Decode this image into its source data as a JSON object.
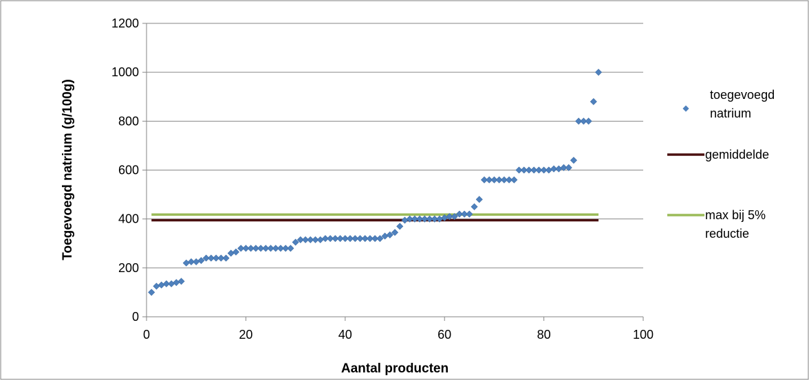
{
  "chart_data": {
    "type": "scatter",
    "xlabel": "Aantal producten",
    "ylabel": "Toegevoegd natrium (g/100g)",
    "xlim": [
      0,
      100
    ],
    "ylim": [
      0,
      1200
    ],
    "xticks": [
      "0",
      "20",
      "40",
      "60",
      "80",
      "100"
    ],
    "yticks": [
      "0",
      "200",
      "400",
      "600",
      "800",
      "1000",
      "1200"
    ],
    "grid": "horizontal",
    "legend_position": "right",
    "series": [
      {
        "name_lines": [
          "toegevoegd",
          "natrium"
        ],
        "kind": "scatter",
        "color": "#4f81bd",
        "x": [
          1,
          2,
          3,
          4,
          5,
          6,
          7,
          8,
          9,
          10,
          11,
          12,
          13,
          14,
          15,
          16,
          17,
          18,
          19,
          20,
          21,
          22,
          23,
          24,
          25,
          26,
          27,
          28,
          29,
          30,
          31,
          32,
          33,
          34,
          35,
          36,
          37,
          38,
          39,
          40,
          41,
          42,
          43,
          44,
          45,
          46,
          47,
          48,
          49,
          50,
          51,
          52,
          53,
          54,
          55,
          56,
          57,
          58,
          59,
          60,
          61,
          62,
          63,
          64,
          65,
          66,
          67,
          68,
          69,
          70,
          71,
          72,
          73,
          74,
          75,
          76,
          77,
          78,
          79,
          80,
          81,
          82,
          83,
          84,
          85,
          86,
          87,
          88,
          89,
          90,
          91
        ],
        "y": [
          100,
          125,
          130,
          135,
          135,
          140,
          145,
          220,
          225,
          225,
          230,
          240,
          240,
          240,
          240,
          240,
          260,
          265,
          280,
          280,
          280,
          280,
          280,
          280,
          280,
          280,
          280,
          280,
          280,
          305,
          315,
          315,
          315,
          315,
          315,
          320,
          320,
          320,
          320,
          320,
          320,
          320,
          320,
          320,
          320,
          320,
          320,
          330,
          335,
          345,
          370,
          395,
          400,
          400,
          400,
          400,
          400,
          400,
          400,
          405,
          410,
          410,
          420,
          420,
          420,
          450,
          480,
          560,
          560,
          560,
          560,
          560,
          560,
          560,
          600,
          600,
          600,
          600,
          600,
          600,
          600,
          605,
          605,
          610,
          610,
          640,
          800,
          800,
          800,
          880,
          1000
        ]
      },
      {
        "name_lines": [
          "gemiddelde"
        ],
        "kind": "line",
        "color": "#4a1010",
        "x": [
          1,
          91
        ],
        "y": [
          395,
          395
        ]
      },
      {
        "name_lines": [
          "max bij 5%",
          "reductie"
        ],
        "kind": "line",
        "color": "#9bbb59",
        "x": [
          1,
          91
        ],
        "y": [
          418,
          418
        ]
      }
    ]
  }
}
